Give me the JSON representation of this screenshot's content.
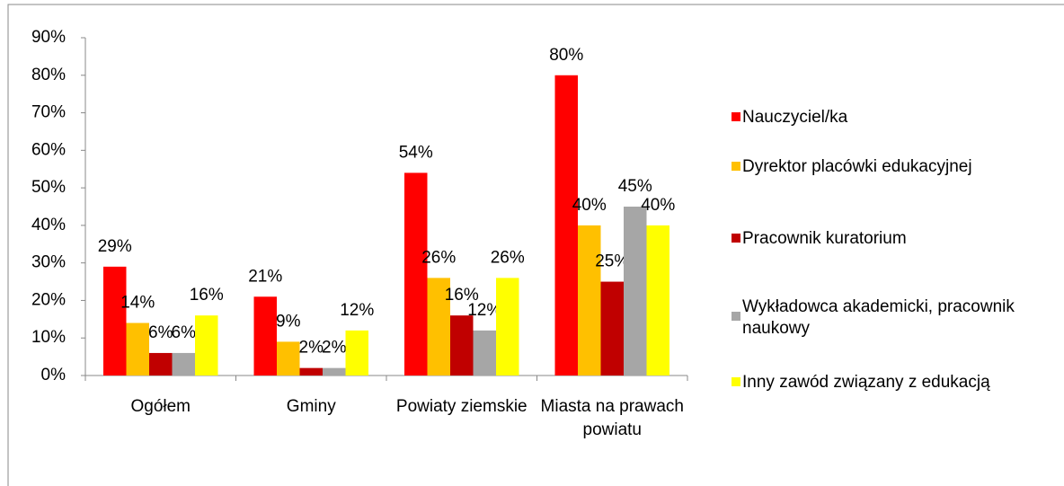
{
  "chart_data": {
    "type": "bar",
    "categories": [
      "Ogółem",
      "Gminy",
      "Powiaty ziemskie",
      "Miasta na prawach powiatu"
    ],
    "series": [
      {
        "name": "Nauczyciel/ka",
        "color": "#ff0000",
        "values": [
          29,
          21,
          54,
          80
        ],
        "value_labels": [
          "29%",
          "21%",
          "54%",
          "80%"
        ]
      },
      {
        "name": "Dyrektor placówki edukacyjnej",
        "color": "#ffc000",
        "values": [
          14,
          9,
          26,
          40
        ],
        "value_labels": [
          "14%",
          "9%",
          "26%",
          "40%"
        ]
      },
      {
        "name": "Pracownik kuratorium",
        "color": "#c00000",
        "values": [
          6,
          2,
          16,
          25
        ],
        "value_labels": [
          "6%",
          "2%",
          "16%",
          "25%"
        ]
      },
      {
        "name": "Wykładowca akademicki, pracownik naukowy",
        "color": "#a6a6a6",
        "values": [
          6,
          2,
          12,
          45
        ],
        "value_labels": [
          "6%",
          "2%",
          "12%",
          "45%"
        ]
      },
      {
        "name": "Inny zawód związany z edukacją",
        "color": "#ffff00",
        "values": [
          16,
          12,
          26,
          40
        ],
        "value_labels": [
          "16%",
          "12%",
          "26%",
          "40%"
        ]
      }
    ],
    "ylim": [
      0,
      90
    ],
    "yticks": [
      {
        "value": 0,
        "label": "0%"
      },
      {
        "value": 10,
        "label": "10%"
      },
      {
        "value": 20,
        "label": "20%"
      },
      {
        "value": 30,
        "label": "30%"
      },
      {
        "value": 40,
        "label": "40%"
      },
      {
        "value": 50,
        "label": "50%"
      },
      {
        "value": 60,
        "label": "60%"
      },
      {
        "value": 70,
        "label": "70%"
      },
      {
        "value": 80,
        "label": "80%"
      },
      {
        "value": 90,
        "label": "90%"
      }
    ],
    "legend": "right"
  }
}
